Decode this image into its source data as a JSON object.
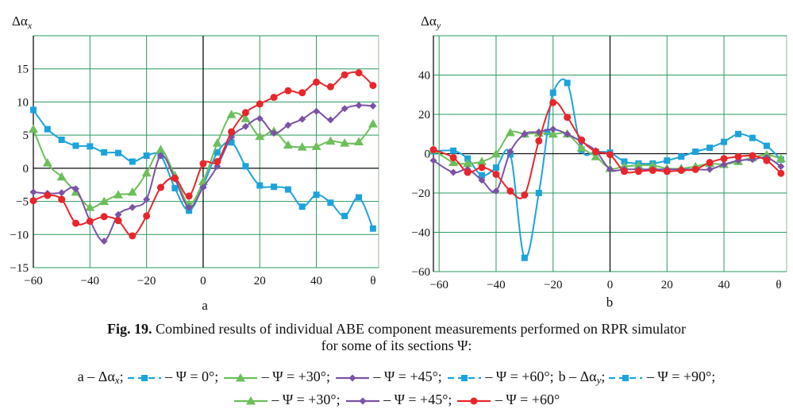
{
  "caption": {
    "fig_label": "Fig. 19.",
    "line1": "Combined results of individual ABE component measurements performed on RPR simulator",
    "line2": "for some of its sections Ψ:"
  },
  "legend": {
    "row1": [
      {
        "prefix": "a – Δα",
        "prefix_sub": "x",
        "prefix_end": ";",
        "color": "#1ba3dc",
        "marker": "square",
        "dash": "dash",
        "label": "– Ψ = 0°;"
      },
      {
        "color": "#6cbf5a",
        "marker": "triangle",
        "dash": "solid",
        "label": "– Ψ = +30°;"
      },
      {
        "color": "#7b52a6",
        "marker": "diamond",
        "dash": "solid",
        "label": "– Ψ = +45°;"
      },
      {
        "color": "#1ba3dc",
        "marker": "square",
        "dash": "dash",
        "label": "– Ψ = +60°;"
      },
      {
        "prefix": "b – Δα",
        "prefix_sub": "y",
        "prefix_end": ";",
        "color": "#1ba3dc",
        "marker": "square",
        "dash": "dash",
        "label": "– Ψ = +90°;"
      }
    ],
    "row2": [
      {
        "color": "#6cbf5a",
        "marker": "triangle",
        "dash": "solid",
        "label": "– Ψ = +30°;"
      },
      {
        "color": "#7b52a6",
        "marker": "diamond",
        "dash": "solid",
        "label": "– Ψ = +45°;"
      },
      {
        "color": "#e8262b",
        "marker": "circle",
        "dash": "solid",
        "label": "– Ψ = +60°"
      }
    ]
  },
  "chart_data": [
    {
      "type": "line",
      "panel_label": "a",
      "ylabel": "Δα",
      "ylabel_sub": "x",
      "xlabel": "θ",
      "xlim": [
        -60,
        62
      ],
      "ylim": [
        -15,
        20
      ],
      "xticks": [
        -60,
        -40,
        -20,
        0,
        20,
        40
      ],
      "yticks": [
        -15,
        -10,
        -5,
        0,
        5,
        10,
        15
      ],
      "grid": true,
      "series": [
        {
          "color": "#1ba3dc",
          "marker": "square",
          "x": [
            -60,
            -55,
            -50,
            -45,
            -40,
            -35,
            -30,
            -25,
            -20,
            -15,
            -10,
            -5,
            0,
            5,
            10,
            15,
            20,
            25,
            30,
            35,
            40,
            45,
            50,
            55,
            60
          ],
          "y": [
            8.8,
            5.9,
            4.3,
            3.4,
            3.3,
            2.4,
            2.3,
            1.0,
            1.9,
            1.9,
            -3.0,
            -6.4,
            -2.6,
            2.4,
            3.9,
            0.3,
            -2.6,
            -2.8,
            -3.2,
            -5.8,
            -4.0,
            -5.2,
            -7.2,
            -4.4,
            -9.1
          ]
        },
        {
          "color": "#6cbf5a",
          "marker": "triangle",
          "x": [
            -60,
            -55,
            -50,
            -45,
            -40,
            -35,
            -30,
            -25,
            -20,
            -15,
            -10,
            -5,
            0,
            5,
            10,
            15,
            20,
            25,
            30,
            35,
            40,
            45,
            50,
            55,
            60
          ],
          "y": [
            5.9,
            0.8,
            -1.3,
            -3.6,
            -5.9,
            -5.0,
            -4.0,
            -3.6,
            -0.7,
            2.8,
            -1.1,
            -5.4,
            -2.0,
            3.8,
            8.1,
            7.5,
            4.8,
            5.6,
            3.5,
            3.2,
            3.3,
            4.1,
            3.8,
            4.0,
            6.7
          ]
        },
        {
          "color": "#7b52a6",
          "marker": "diamond",
          "x": [
            -60,
            -55,
            -50,
            -45,
            -40,
            -35,
            -30,
            -25,
            -20,
            -15,
            -10,
            -5,
            0,
            5,
            10,
            15,
            20,
            25,
            30,
            35,
            40,
            45,
            50,
            55,
            60
          ],
          "y": [
            -3.6,
            -3.8,
            -3.7,
            -3.1,
            -7.9,
            -11.0,
            -7.0,
            -5.9,
            -4.7,
            1.9,
            -1.6,
            -5.9,
            -2.9,
            0.3,
            4.7,
            6.3,
            7.5,
            5.3,
            6.5,
            7.4,
            8.6,
            7.3,
            9.0,
            9.5,
            9.4
          ]
        },
        {
          "color": "#e8262b",
          "marker": "circle",
          "x": [
            -60,
            -55,
            -50,
            -45,
            -40,
            -35,
            -30,
            -25,
            -20,
            -15,
            -10,
            -5,
            0,
            5,
            10,
            15,
            20,
            25,
            30,
            35,
            40,
            45,
            50,
            55,
            60
          ],
          "y": [
            -4.9,
            -4.1,
            -4.7,
            -8.3,
            -8.0,
            -7.3,
            -7.9,
            -10.2,
            -7.2,
            -2.9,
            -1.5,
            -4.2,
            0.7,
            1.0,
            5.5,
            8.4,
            9.7,
            10.7,
            11.7,
            11.4,
            13.0,
            12.3,
            14.1,
            14.4,
            12.5
          ]
        }
      ]
    },
    {
      "type": "line",
      "panel_label": "b",
      "ylabel": "Δα",
      "ylabel_sub": "y",
      "xlabel": "θ",
      "xlim": [
        -62,
        62
      ],
      "ylim": [
        -60,
        60
      ],
      "xticks": [
        -60,
        -40,
        -20,
        0,
        20,
        40
      ],
      "yticks": [
        -60,
        -40,
        -20,
        0,
        20,
        40
      ],
      "grid": true,
      "series": [
        {
          "color": "#1ba3dc",
          "marker": "square",
          "x": [
            -62,
            -55,
            -50,
            -45,
            -40,
            -35,
            -30,
            -25,
            -22,
            -20,
            -15,
            -10,
            -5,
            0,
            5,
            10,
            15,
            20,
            25,
            30,
            35,
            40,
            45,
            50,
            55,
            60
          ],
          "y": [
            1.2,
            1.5,
            -2.5,
            -11.0,
            -7.1,
            -0.4,
            -53.0,
            -20.0,
            11.0,
            31.0,
            36.0,
            2.0,
            1.0,
            0.5,
            -4.0,
            -5.0,
            -5.0,
            -3.5,
            -1.5,
            1.0,
            3.0,
            6.0,
            10.0,
            8.0,
            4.0,
            -3.0
          ]
        },
        {
          "color": "#6cbf5a",
          "marker": "triangle",
          "x": [
            -62,
            -55,
            -50,
            -45,
            -40,
            -35,
            -30,
            -25,
            -20,
            -15,
            -10,
            -5,
            0,
            5,
            10,
            15,
            20,
            25,
            30,
            35,
            40,
            45,
            50,
            55,
            60
          ],
          "y": [
            2.0,
            -4.5,
            -5.0,
            -4.0,
            -0.1,
            10.7,
            10.0,
            10.5,
            10.0,
            10.0,
            3.0,
            -1.5,
            -7.5,
            -6.5,
            -6.0,
            -6.0,
            -7.5,
            -7.5,
            -6.5,
            -5.0,
            -5.5,
            -4.0,
            -2.0,
            -0.5,
            -2.5
          ]
        },
        {
          "color": "#7b52a6",
          "marker": "diamond",
          "x": [
            -62,
            -55,
            -50,
            -45,
            -40,
            -35,
            -30,
            -25,
            -20,
            -15,
            -10,
            -5,
            0,
            5,
            10,
            15,
            20,
            25,
            30,
            35,
            40,
            45,
            50,
            55,
            60
          ],
          "y": [
            -3.5,
            -9.5,
            -8.0,
            -13.5,
            -19.0,
            1.0,
            10.0,
            11.0,
            12.5,
            10.0,
            6.0,
            1.5,
            -8.0,
            -8.0,
            -8.0,
            -8.0,
            -8.0,
            -8.0,
            -8.0,
            -8.0,
            -5.5,
            -3.5,
            -3.0,
            -2.0,
            -6.5
          ]
        },
        {
          "color": "#e8262b",
          "marker": "circle",
          "x": [
            -62,
            -55,
            -50,
            -45,
            -40,
            -35,
            -30,
            -25,
            -20,
            -15,
            -10,
            -5,
            0,
            5,
            10,
            15,
            20,
            25,
            30,
            35,
            40,
            45,
            50,
            55,
            60
          ],
          "y": [
            2.0,
            -2.0,
            -9.5,
            -7.0,
            -10.5,
            -19.0,
            -21.0,
            6.5,
            26.0,
            18.5,
            7.0,
            1.0,
            -0.5,
            -9.0,
            -9.0,
            -8.5,
            -9.0,
            -8.5,
            -8.0,
            -4.5,
            -2.5,
            -1.5,
            -1.0,
            -3.5,
            -10.0
          ]
        }
      ]
    }
  ]
}
